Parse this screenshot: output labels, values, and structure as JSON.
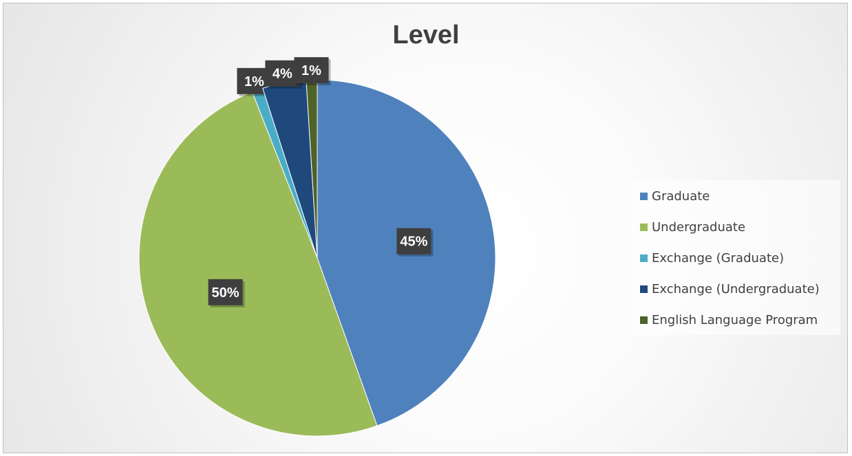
{
  "chart_data": {
    "type": "pie",
    "title": "Level",
    "categories": [
      "Graduate",
      "Undergraduate",
      "Exchange (Graduate)",
      "Exchange (Undergraduate)",
      "English Language Program"
    ],
    "values": [
      45,
      50,
      1,
      4,
      1
    ],
    "data_labels": [
      "45%",
      "50%",
      "1%",
      "4%",
      "1%"
    ],
    "colors": [
      "#4f81bd",
      "#9bbb59",
      "#4bacc6",
      "#1f497d",
      "#4f6228"
    ],
    "legend_position": "right",
    "start_angle": "12 o'clock",
    "direction": "clockwise"
  }
}
